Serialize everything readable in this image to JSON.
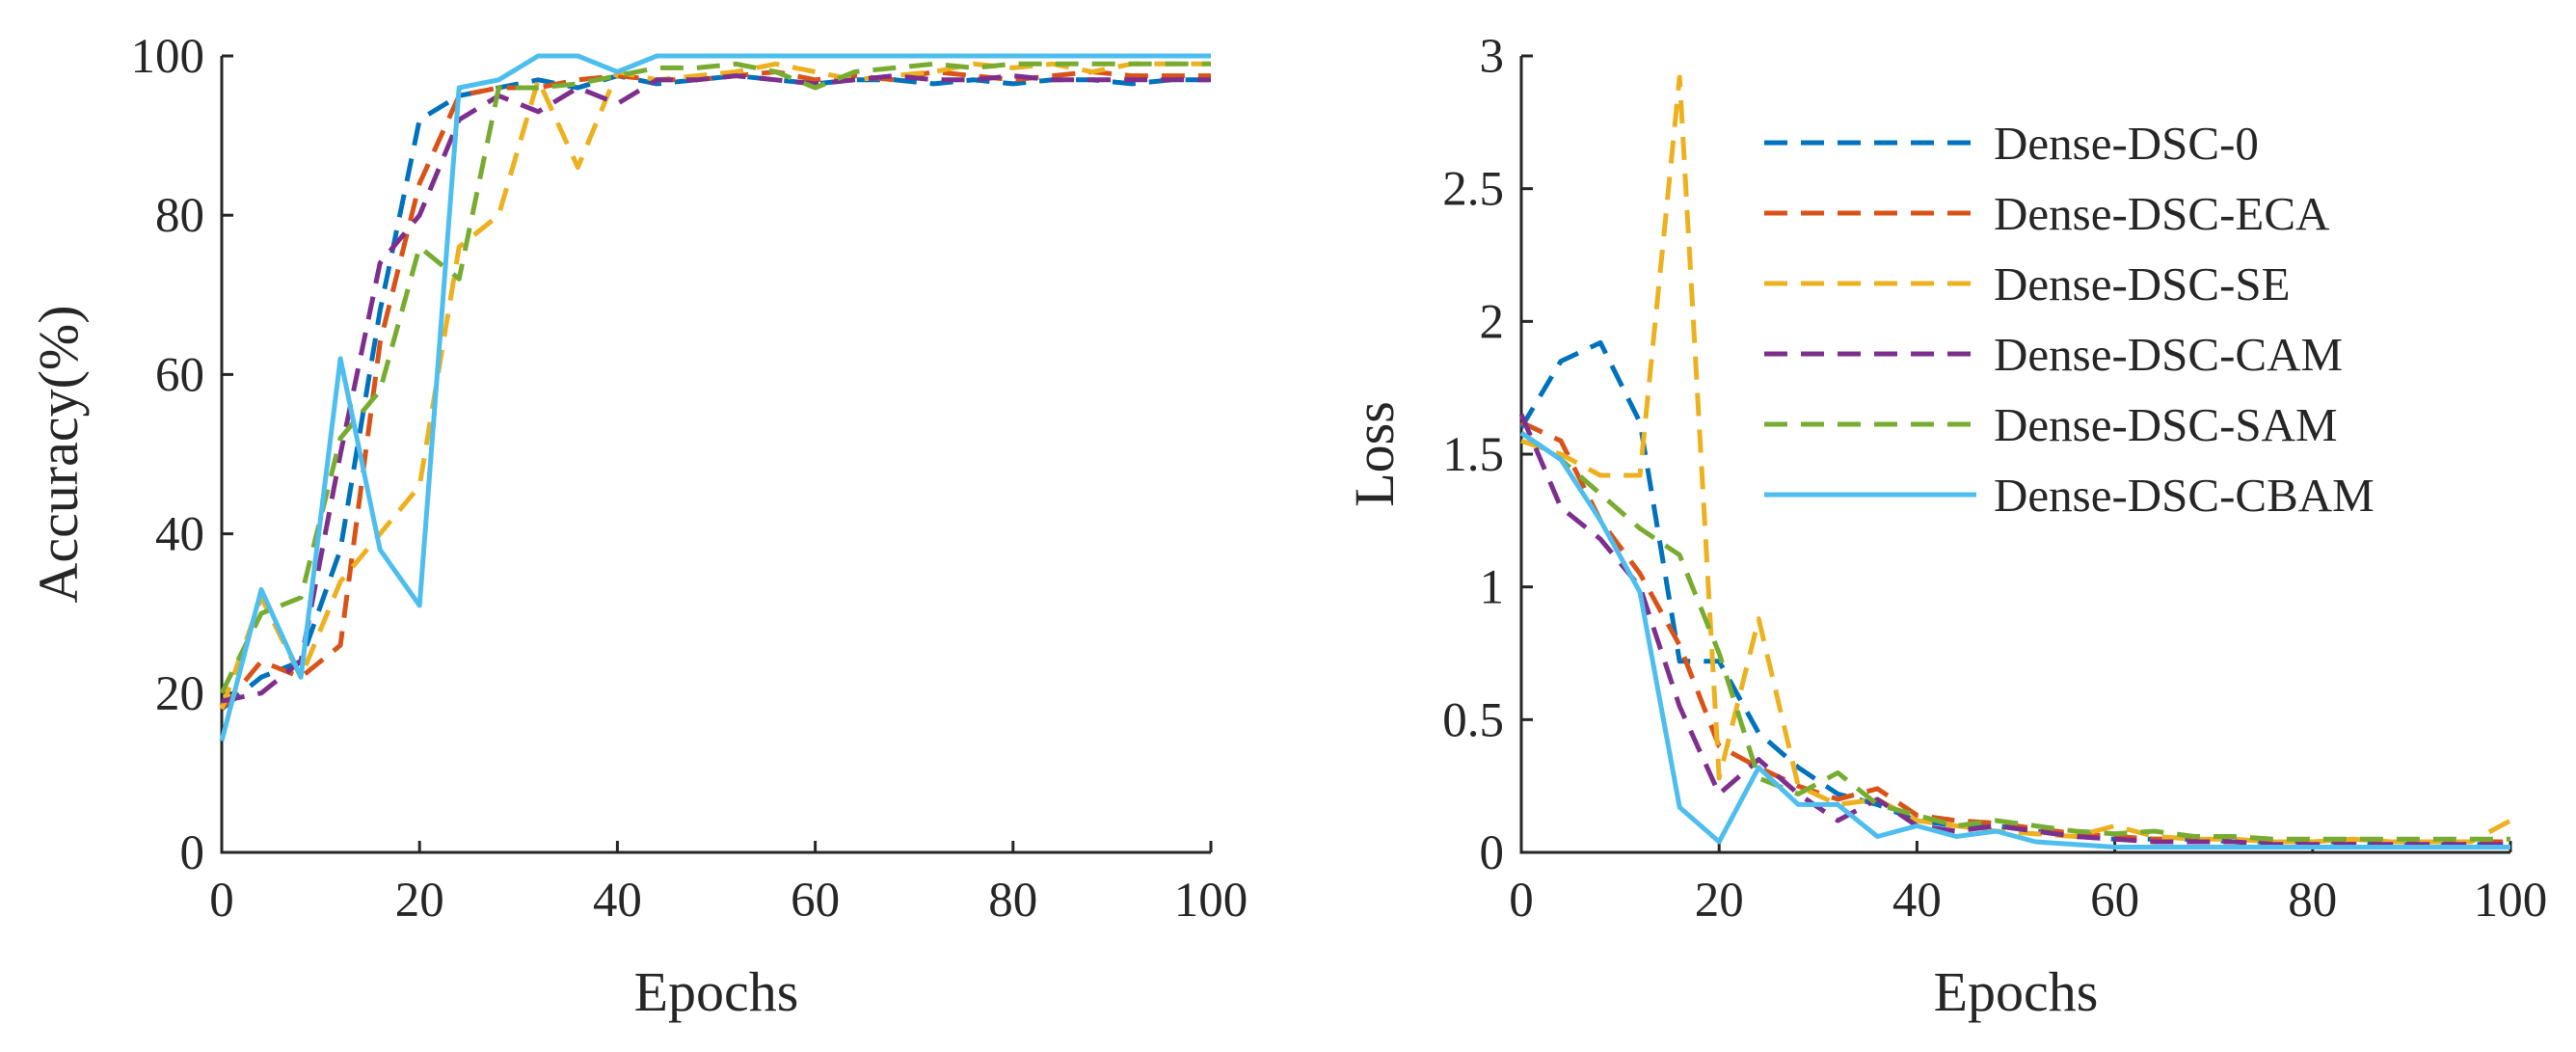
{
  "colors": {
    "axis": "#262626",
    "Dense-DSC-0": "#0072BD",
    "Dense-DSC-ECA": "#D95319",
    "Dense-DSC-SE": "#EDB120",
    "Dense-DSC-CAM": "#7E2F8E",
    "Dense-DSC-SAM": "#77AC30",
    "Dense-DSC-CBAM": "#4DBEEE"
  },
  "chart_data": [
    {
      "type": "line",
      "title": "",
      "xlabel": "Epochs",
      "ylabel": "Accuracy(%)",
      "xlim": [
        0,
        100
      ],
      "ylim": [
        0,
        100
      ],
      "xticks": [
        "0",
        "20",
        "40",
        "60",
        "80",
        "100"
      ],
      "yticks": [
        "0",
        "20",
        "40",
        "60",
        "80",
        "100"
      ],
      "grid": false,
      "legend": false,
      "x": [
        0,
        4,
        8,
        12,
        16,
        20,
        24,
        28,
        32,
        36,
        40,
        44,
        48,
        52,
        56,
        60,
        64,
        68,
        72,
        76,
        80,
        84,
        88,
        92,
        96,
        100
      ],
      "series": [
        {
          "name": "Dense-DSC-0",
          "style": "dashed",
          "values": [
            18,
            22,
            24,
            38,
            68,
            92,
            95,
            96,
            97,
            96,
            97.5,
            96.5,
            97,
            97.5,
            97,
            96.5,
            97,
            97,
            96.5,
            97,
            96.5,
            97,
            97,
            96.5,
            97,
            97
          ]
        },
        {
          "name": "Dense-DSC-ECA",
          "style": "dashed",
          "values": [
            18,
            24,
            22,
            26,
            64,
            84,
            95,
            96,
            96,
            97,
            97.5,
            97,
            97,
            97.5,
            98,
            97,
            97.5,
            97,
            98,
            97.5,
            97,
            97.5,
            98,
            97.5,
            97.5,
            97.5
          ]
        },
        {
          "name": "Dense-DSC-SE",
          "style": "dashed",
          "values": [
            18,
            32,
            22,
            34,
            40,
            46,
            76,
            80,
            97,
            86,
            98,
            97,
            97.5,
            98,
            99,
            98,
            97,
            97.5,
            98,
            99,
            98.5,
            99,
            98,
            99,
            99,
            99
          ]
        },
        {
          "name": "Dense-DSC-CAM",
          "style": "dashed",
          "values": [
            19,
            20,
            24,
            50,
            74,
            80,
            92,
            95,
            93,
            96,
            94,
            97,
            97,
            97.5,
            97,
            96.5,
            97,
            97.5,
            97,
            97,
            97.5,
            97,
            97,
            97,
            97,
            97
          ]
        },
        {
          "name": "Dense-DSC-SAM",
          "style": "dashed",
          "values": [
            20,
            30,
            32,
            52,
            58,
            76,
            72,
            96,
            96,
            96.5,
            97.5,
            98.5,
            98.5,
            99,
            98,
            96,
            98,
            98.5,
            99,
            98.5,
            99,
            99,
            99,
            99,
            99,
            99
          ]
        },
        {
          "name": "Dense-DSC-CBAM",
          "style": "solid",
          "values": [
            14,
            33,
            22,
            62,
            38,
            31,
            96,
            97,
            100,
            100,
            98,
            100,
            100,
            100,
            100,
            100,
            100,
            100,
            100,
            100,
            100,
            100,
            100,
            100,
            100,
            100
          ]
        }
      ]
    },
    {
      "type": "line",
      "title": "",
      "xlabel": "Epochs",
      "ylabel": "Loss",
      "xlim": [
        0,
        100
      ],
      "ylim": [
        0,
        3
      ],
      "xticks": [
        "0",
        "20",
        "40",
        "60",
        "80",
        "100"
      ],
      "yticks": [
        "0",
        "0.5",
        "1",
        "1.5",
        "2",
        "2.5",
        "3"
      ],
      "grid": false,
      "legend": true,
      "legend_location": "top-right",
      "x": [
        0,
        4,
        8,
        12,
        16,
        20,
        24,
        28,
        32,
        36,
        40,
        44,
        48,
        52,
        56,
        60,
        64,
        68,
        72,
        76,
        80,
        84,
        88,
        92,
        96,
        100
      ],
      "series": [
        {
          "name": "Dense-DSC-0",
          "style": "dashed",
          "values": [
            1.6,
            1.85,
            1.92,
            1.62,
            0.72,
            0.72,
            0.45,
            0.32,
            0.22,
            0.18,
            0.12,
            0.1,
            0.1,
            0.08,
            0.06,
            0.05,
            0.05,
            0.05,
            0.04,
            0.04,
            0.04,
            0.04,
            0.03,
            0.03,
            0.03,
            0.03
          ]
        },
        {
          "name": "Dense-DSC-ECA",
          "style": "dashed",
          "values": [
            1.62,
            1.55,
            1.25,
            1.05,
            0.78,
            0.4,
            0.32,
            0.25,
            0.2,
            0.24,
            0.14,
            0.12,
            0.11,
            0.09,
            0.07,
            0.06,
            0.05,
            0.05,
            0.04,
            0.04,
            0.04,
            0.04,
            0.04,
            0.04,
            0.04,
            0.04
          ]
        },
        {
          "name": "Dense-DSC-SE",
          "style": "dashed",
          "values": [
            1.55,
            1.5,
            1.42,
            1.42,
            2.92,
            0.28,
            0.88,
            0.25,
            0.18,
            0.2,
            0.12,
            0.1,
            0.08,
            0.07,
            0.06,
            0.1,
            0.06,
            0.05,
            0.05,
            0.04,
            0.04,
            0.05,
            0.04,
            0.04,
            0.04,
            0.12
          ]
        },
        {
          "name": "Dense-DSC-CAM",
          "style": "dashed",
          "values": [
            1.65,
            1.3,
            1.18,
            1.0,
            0.55,
            0.22,
            0.35,
            0.22,
            0.12,
            0.2,
            0.1,
            0.08,
            0.1,
            0.08,
            0.06,
            0.05,
            0.04,
            0.04,
            0.04,
            0.03,
            0.03,
            0.03,
            0.03,
            0.03,
            0.03,
            0.03
          ]
        },
        {
          "name": "Dense-DSC-SAM",
          "style": "dashed",
          "values": [
            1.58,
            1.48,
            1.35,
            1.22,
            1.12,
            0.75,
            0.28,
            0.22,
            0.3,
            0.18,
            0.14,
            0.1,
            0.12,
            0.1,
            0.08,
            0.07,
            0.08,
            0.06,
            0.06,
            0.05,
            0.05,
            0.05,
            0.05,
            0.05,
            0.05,
            0.05
          ]
        },
        {
          "name": "Dense-DSC-CBAM",
          "style": "solid",
          "values": [
            1.58,
            1.48,
            1.25,
            0.98,
            0.17,
            0.04,
            0.32,
            0.18,
            0.18,
            0.06,
            0.1,
            0.06,
            0.08,
            0.04,
            0.03,
            0.02,
            0.02,
            0.02,
            0.02,
            0.02,
            0.02,
            0.02,
            0.02,
            0.02,
            0.02,
            0.02
          ]
        }
      ]
    }
  ]
}
